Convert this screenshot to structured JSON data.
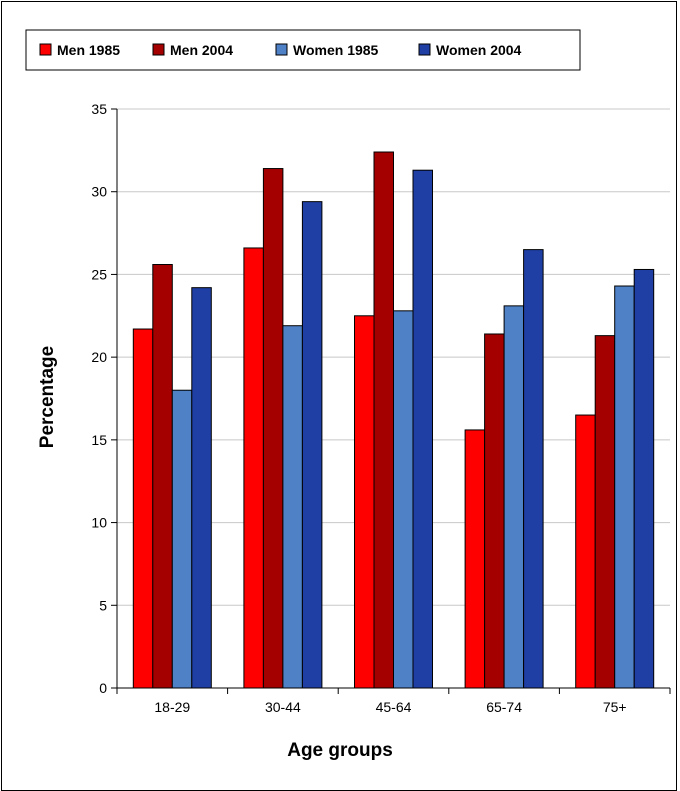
{
  "chart_data": {
    "type": "bar",
    "title": "",
    "xlabel": "Age groups",
    "ylabel": "Percentage",
    "categories": [
      "18-29",
      "30-44",
      "45-64",
      "65-74",
      "75+"
    ],
    "ylim": [
      0,
      35
    ],
    "yticks": [
      0,
      5,
      10,
      15,
      20,
      25,
      30,
      35
    ],
    "grid": true,
    "legend_position": "top-left",
    "series": [
      {
        "name": "Men 1985",
        "color": "#ff0000",
        "values": [
          21.7,
          26.6,
          22.5,
          15.6,
          16.5
        ]
      },
      {
        "name": "Men 2004",
        "color": "#a50000",
        "values": [
          25.6,
          31.4,
          32.4,
          21.4,
          21.3
        ]
      },
      {
        "name": "Women 1985",
        "color": "#4f81c7",
        "values": [
          18.0,
          21.9,
          22.8,
          23.1,
          24.3
        ]
      },
      {
        "name": "Women 2004",
        "color": "#1f3fa5",
        "values": [
          24.2,
          29.4,
          31.3,
          26.5,
          25.3
        ]
      }
    ]
  }
}
